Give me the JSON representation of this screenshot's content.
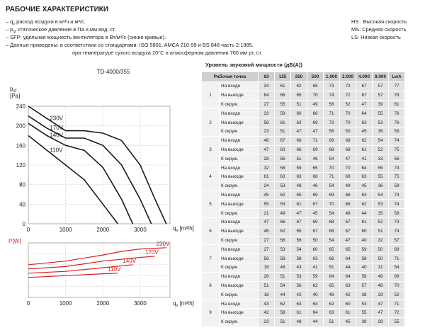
{
  "header": {
    "title": "РАБОЧИЕ ХАРАКТЕРИСТИКИ",
    "notes": [
      [
        "– q",
        "v",
        " расход воздуха в м³/ч и м³/с."
      ],
      [
        "– p",
        "sf",
        " статическое давление в Па и мм вод. ст."
      ],
      [
        "– SFP: удельная мощность вентилятора в Вт/м³/с (синие кривые)."
      ],
      [
        "– Данные приведены: в соответствии со стандартами: ISO 5801, AMCA 210-99 и BS 848 часть 2:1985."
      ],
      [
        "при температуре сухого воздуха 20°C и атмосферном давлении 760 мм рт. ст."
      ]
    ],
    "speeds": [
      "HS : Высокая скорость",
      "MS: Средняя скорость",
      "LS: Низкая скорость"
    ]
  },
  "chart_data": [
    {
      "type": "line",
      "title": "TD-4000/355",
      "y_label": [
        "p",
        "sf",
        "[Pa]"
      ],
      "x_label": [
        "q",
        "v",
        "[m³/h]"
      ],
      "xlim": [
        0,
        3800
      ],
      "ylim": [
        0,
        240
      ],
      "xticks": [
        0,
        1000,
        2000,
        3000
      ],
      "yticks": [
        0,
        40,
        80,
        120,
        160,
        200,
        240
      ],
      "grid": true,
      "series": [
        {
          "name": "230V",
          "color": "#1a1a1a",
          "x": [
            0,
            500,
            1000,
            1500,
            2000,
            2500,
            3000,
            3400,
            3700
          ],
          "values": [
            240,
            215,
            190,
            190,
            185,
            170,
            120,
            50,
            0
          ]
        },
        {
          "name": "170V",
          "color": "#1a1a1a",
          "x": [
            0,
            500,
            1000,
            1500,
            2000,
            2500,
            3000,
            3300
          ],
          "values": [
            220,
            195,
            175,
            175,
            160,
            120,
            50,
            0
          ]
        },
        {
          "name": "140V",
          "color": "#1a1a1a",
          "x": [
            0,
            500,
            1000,
            1500,
            2000,
            2500,
            2800
          ],
          "values": [
            205,
            180,
            160,
            150,
            115,
            50,
            0
          ]
        },
        {
          "name": "110V",
          "color": "#1a1a1a",
          "x": [
            0,
            500,
            1000,
            1500,
            2000,
            2400
          ],
          "values": [
            180,
            150,
            120,
            90,
            40,
            0
          ]
        }
      ]
    },
    {
      "type": "line",
      "y_label": "P[W]",
      "x_label": [
        "q",
        "v",
        "[m³/h]"
      ],
      "xlim": [
        0,
        3800
      ],
      "ylim": [
        0,
        450
      ],
      "xticks": [
        0,
        1000,
        2000,
        3000
      ],
      "grid": true,
      "series": [
        {
          "name": "230V",
          "color": "#d62020",
          "x": [
            0,
            1000,
            2000,
            2500,
            3000,
            3700
          ],
          "values": [
            270,
            300,
            350,
            380,
            400,
            410
          ]
        },
        {
          "name": "170V",
          "color": "#d62020",
          "x": [
            0,
            1000,
            2000,
            3000,
            3400
          ],
          "values": [
            235,
            255,
            300,
            330,
            340
          ]
        },
        {
          "name": "140V",
          "color": "#d62020",
          "x": [
            0,
            1000,
            2000,
            2800
          ],
          "values": [
            200,
            215,
            245,
            270
          ]
        },
        {
          "name": "110V",
          "color": "#d62020",
          "x": [
            0,
            1000,
            2000,
            2400
          ],
          "values": [
            165,
            180,
            195,
            200
          ]
        }
      ]
    }
  ],
  "table": {
    "title": "Уровень звуковой мощности (дБ(A))",
    "header": [
      "Рабочая точка",
      "63",
      "125",
      "250",
      "500",
      "1.000",
      "2.000",
      "4.000",
      "8.000",
      "LwA"
    ],
    "points": [
      {
        "point": "1",
        "rows": [
          {
            "label": "На входе",
            "values": [
              34,
              61,
              62,
              68,
              73,
              72,
              67,
              57,
              77
            ]
          },
          {
            "label": "На выходе",
            "values": [
              64,
              66,
              65,
              70,
              74,
              72,
              67,
              57,
              78
            ]
          },
          {
            "label": "К окруж.",
            "values": [
              27,
              55,
              51,
              49,
              58,
              52,
              47,
              39,
              61
            ]
          }
        ]
      },
      {
        "point": "2",
        "rows": [
          {
            "label": "На входе",
            "values": [
              33,
              59,
              60,
              66,
              71,
              70,
              64,
              55,
              76
            ]
          },
          {
            "label": "На выходе",
            "values": [
              58,
              61,
              63,
              69,
              72,
              70,
              63,
              53,
              76
            ]
          },
          {
            "label": "К окруж.",
            "values": [
              23,
              51,
              47,
              47,
              56,
              50,
              45,
              36,
              59
            ]
          }
        ]
      },
      {
        "point": "3",
        "rows": [
          {
            "label": "На входе",
            "values": [
              48,
              67,
              68,
              71,
              69,
              68,
              62,
              54,
              74
            ]
          },
          {
            "label": "На выходе",
            "values": [
              47,
              63,
              66,
              69,
              68,
              68,
              61,
              52,
              75
            ]
          },
          {
            "label": "К окруж.",
            "values": [
              28,
              56,
              51,
              46,
              54,
              47,
              41,
              33,
              56
            ]
          }
        ]
      },
      {
        "point": "4",
        "rows": [
          {
            "label": "На входе",
            "values": [
              32,
              58,
              59,
              65,
              70,
              70,
              64,
              55,
              74
            ]
          },
          {
            "label": "На выходе",
            "values": [
              61,
              63,
              63,
              68,
              71,
              69,
              63,
              55,
              75
            ]
          },
          {
            "label": "К окруж.",
            "values": [
              24,
              53,
              48,
              46,
              54,
              49,
              45,
              36,
              59
            ]
          }
        ]
      },
      {
        "point": "5",
        "rows": [
          {
            "label": "На входе",
            "values": [
              45,
              62,
              65,
              69,
              69,
              68,
              63,
              54,
              74
            ]
          },
          {
            "label": "На выходе",
            "values": [
              55,
              59,
              61,
              67,
              70,
              68,
              62,
              53,
              74
            ]
          },
          {
            "label": "К окруж.",
            "values": [
              21,
              49,
              47,
              45,
              54,
              48,
              44,
              35,
              58
            ]
          }
        ]
      },
      {
        "point": "6",
        "rows": [
          {
            "label": "На входе",
            "values": [
              47,
              66,
              67,
              69,
              68,
              67,
              61,
              52,
              73
            ]
          },
          {
            "label": "На выходе",
            "values": [
              46,
              62,
              65,
              67,
              68,
              67,
              60,
              51,
              74
            ]
          },
          {
            "label": "К окруж.",
            "values": [
              27,
              56,
              56,
              50,
              54,
              47,
              40,
              32,
              57
            ]
          }
        ]
      },
      {
        "point": "7",
        "rows": [
          {
            "label": "На входе",
            "values": [
              27,
              53,
              54,
              60,
              65,
              65,
              59,
              50,
              69
            ]
          },
          {
            "label": "На выходе",
            "values": [
              56,
              58,
              58,
              63,
              66,
              64,
              58,
              50,
              71
            ]
          },
          {
            "label": "К окруж.",
            "values": [
              19,
              48,
              43,
              41,
              51,
              44,
              40,
              31,
              54
            ]
          }
        ]
      },
      {
        "point": "8",
        "rows": [
          {
            "label": "На входе",
            "values": [
              26,
              51,
              53,
              59,
              64,
              64,
              58,
              48,
              68
            ]
          },
          {
            "label": "На выходе",
            "values": [
              51,
              54,
              56,
              62,
              65,
              63,
              57,
              48,
              70
            ]
          },
          {
            "label": "К окруж.",
            "values": [
              16,
              44,
              42,
              40,
              49,
              42,
              38,
              29,
              52
            ]
          }
        ]
      },
      {
        "point": "9",
        "rows": [
          {
            "label": "На входе",
            "values": [
              43,
              62,
              63,
              64,
              62,
              60,
              53,
              47,
              71
            ]
          },
          {
            "label": "На выходе",
            "values": [
              42,
              58,
              61,
              64,
              63,
              61,
              55,
              47,
              72
            ]
          },
          {
            "label": "К окруж.",
            "values": [
              23,
              51,
              48,
              44,
              51,
              45,
              39,
              29,
              55
            ]
          }
        ]
      }
    ]
  }
}
